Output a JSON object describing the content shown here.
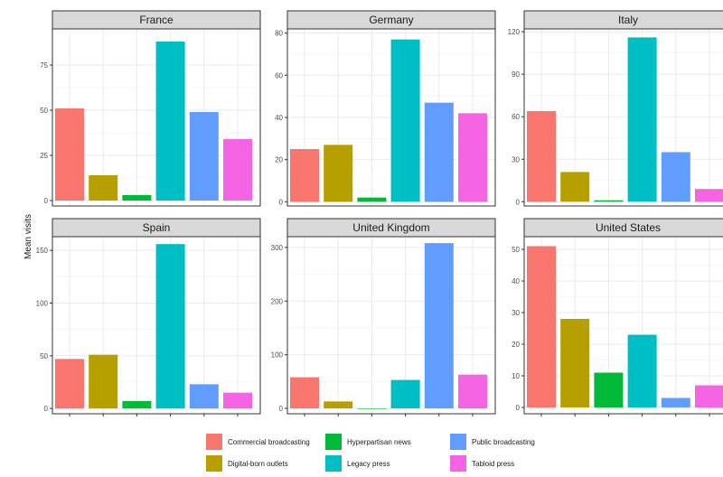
{
  "chart_data": {
    "type": "bar",
    "ylabel": "Mean visits",
    "xlabel": "",
    "categories": [
      "Commercial broadcasting",
      "Digital-born outlets",
      "Hyperpartisan news",
      "Legacy press",
      "Public broadcasting",
      "Tabloid press"
    ],
    "colors": {
      "Commercial broadcasting": "#F8766D",
      "Digital-born outlets": "#B79F00",
      "Hyperpartisan news": "#00BA38",
      "Legacy press": "#00BFC4",
      "Public broadcasting": "#619CFF",
      "Tabloid press": "#F564E3"
    },
    "legend": {
      "position": "bottom",
      "items": [
        "Commercial broadcasting",
        "Digital-born outlets",
        "Hyperpartisan news",
        "Legacy press",
        "Public broadcasting",
        "Tabloid press"
      ]
    },
    "grid": true,
    "facets": [
      {
        "name": "France",
        "values": [
          51,
          14,
          3,
          88,
          49,
          34
        ],
        "ylim": [
          -3,
          95
        ],
        "yticks": [
          0,
          25,
          50,
          75
        ]
      },
      {
        "name": "Germany",
        "values": [
          25,
          27,
          2,
          77,
          47,
          42
        ],
        "ylim": [
          -2,
          82
        ],
        "yticks": [
          0,
          20,
          40,
          60,
          80
        ]
      },
      {
        "name": "Italy",
        "values": [
          64,
          21,
          1,
          116,
          35,
          9
        ],
        "ylim": [
          -3,
          122
        ],
        "yticks": [
          0,
          30,
          60,
          90,
          120
        ]
      },
      {
        "name": "Spain",
        "values": [
          47,
          51,
          7,
          156,
          23,
          15
        ],
        "ylim": [
          -5,
          163
        ],
        "yticks": [
          0,
          50,
          100,
          150
        ]
      },
      {
        "name": "United Kingdom",
        "values": [
          58,
          13,
          0,
          53,
          308,
          63
        ],
        "ylim": [
          -10,
          320
        ],
        "yticks": [
          0,
          100,
          200,
          300
        ]
      },
      {
        "name": "United States",
        "values": [
          51,
          28,
          11,
          23,
          3,
          7
        ],
        "ylim": [
          -2,
          54
        ],
        "yticks": [
          0,
          10,
          20,
          30,
          40,
          50
        ]
      }
    ]
  }
}
